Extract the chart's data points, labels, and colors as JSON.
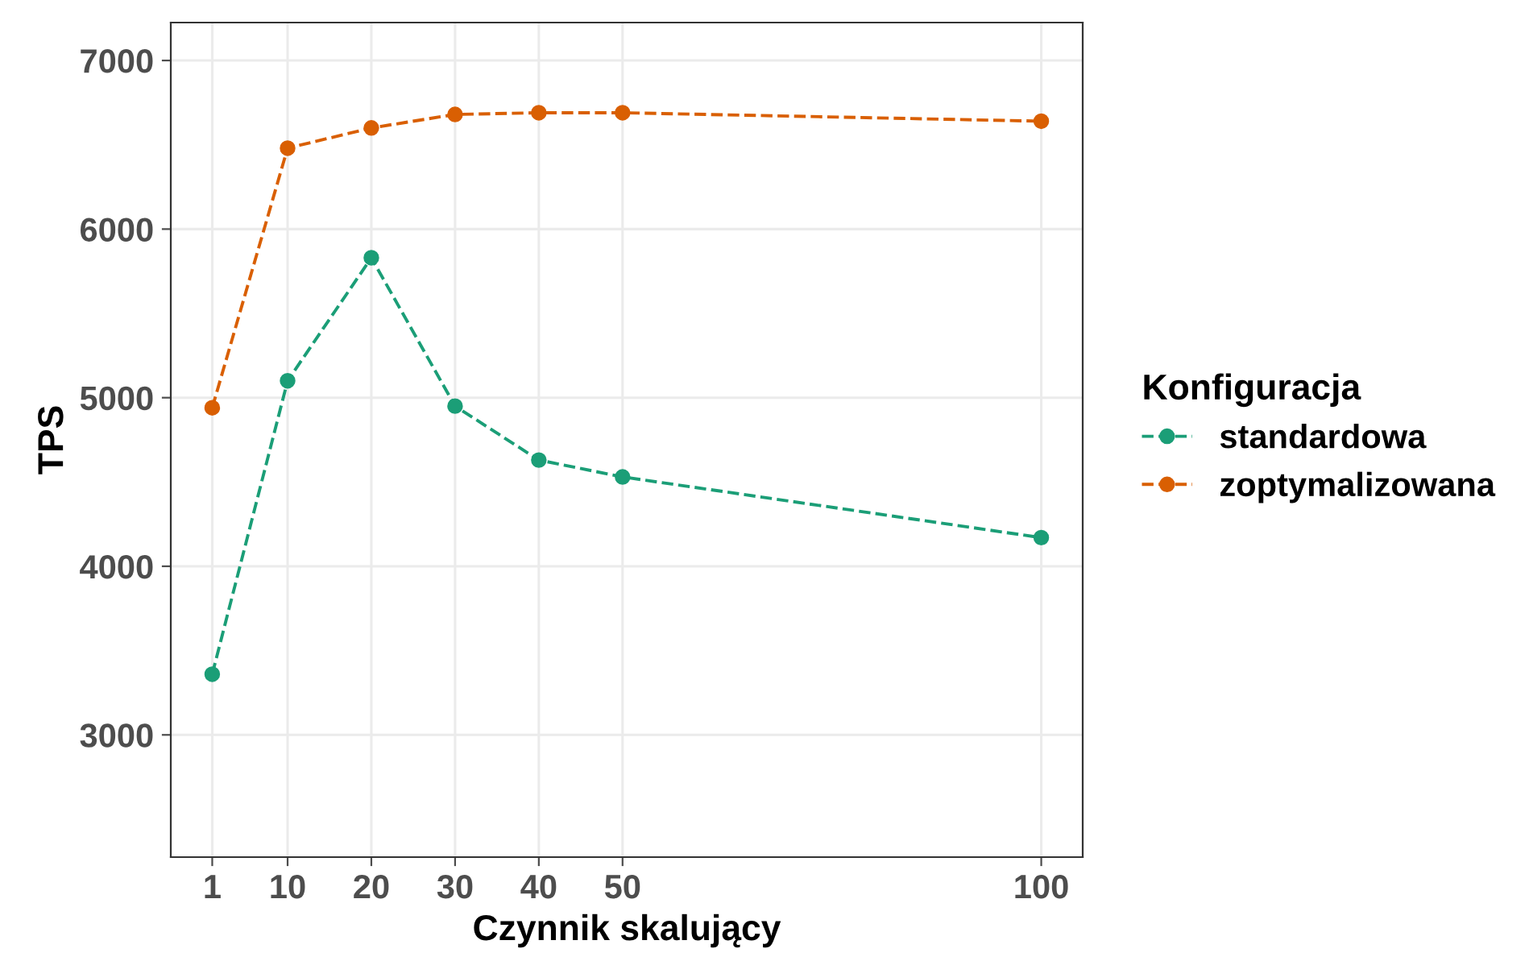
{
  "chart_data": {
    "type": "line",
    "xlabel": "Czynnik skalujący",
    "ylabel": "TPS",
    "legend_title": "Konfiguracja",
    "legend": "right",
    "x": [
      1,
      10,
      20,
      30,
      40,
      50,
      100
    ],
    "series": [
      {
        "name": "standardowa",
        "color": "#1b9e77",
        "values": [
          3360,
          5100,
          5830,
          4950,
          4630,
          4530,
          4170
        ]
      },
      {
        "name": "zoptymalizowana",
        "color": "#d95f02",
        "values": [
          4940,
          6480,
          6600,
          6680,
          6690,
          6690,
          6640
        ]
      }
    ],
    "xlim": [
      -3.95,
      104.95
    ],
    "xticks": [
      1,
      10,
      20,
      30,
      40,
      50,
      100
    ],
    "ylim": [
      2275,
      7225
    ],
    "yticks": [
      3000,
      4000,
      5000,
      6000,
      7000
    ],
    "grid": true,
    "marker": "circle",
    "line_style": "dashed"
  }
}
